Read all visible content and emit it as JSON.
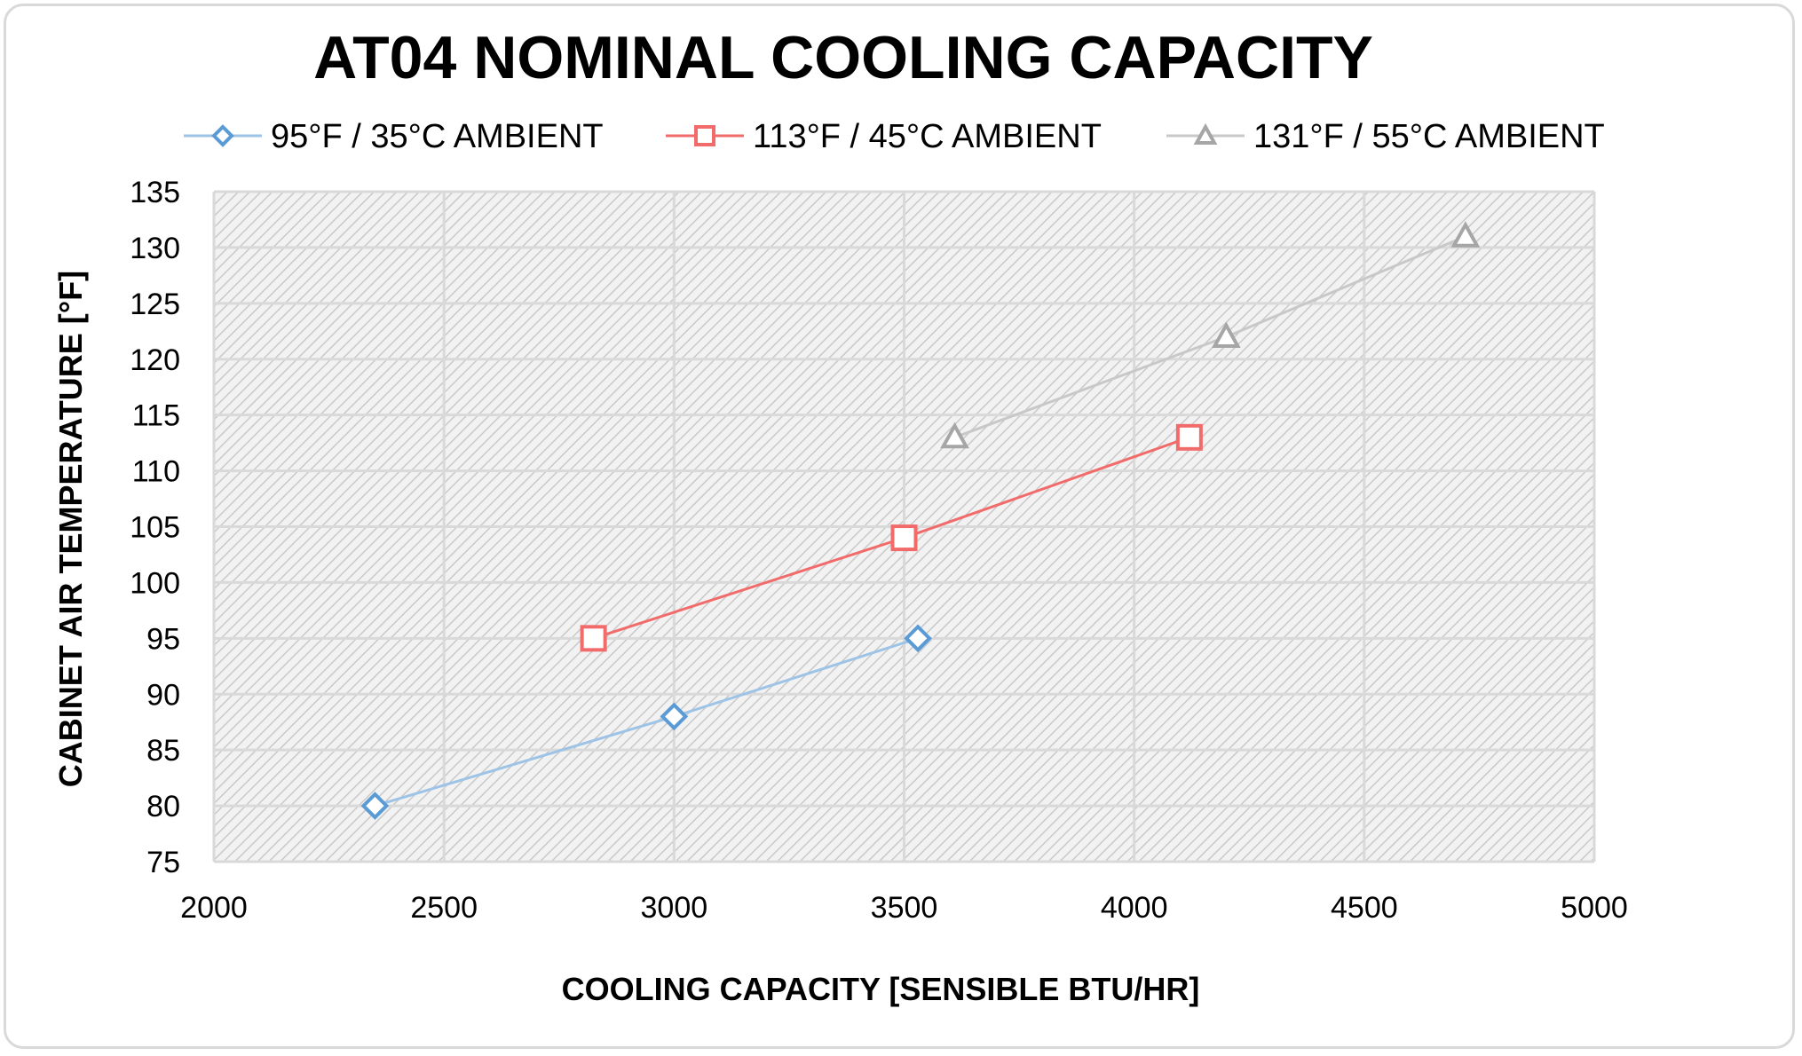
{
  "chart_data": {
    "type": "line",
    "title": "AT04 NOMINAL COOLING CAPACITY",
    "xlabel": "COOLING CAPACITY [SENSIBLE BTU/HR]",
    "ylabel": "CABINET AIR TEMPERATURE  [°F]",
    "xlim": [
      2000,
      5000
    ],
    "ylim": [
      75,
      135
    ],
    "xticks": [
      2000,
      2500,
      3000,
      3500,
      4000,
      4500,
      5000
    ],
    "yticks": [
      75,
      80,
      85,
      90,
      95,
      100,
      105,
      110,
      115,
      120,
      125,
      130,
      135
    ],
    "grid": true,
    "legend_position": "top",
    "series": [
      {
        "name": "95°F / 35°C AMBIENT",
        "marker": "diamond",
        "color": "#5b9bd5",
        "line_color": "#9dc3e6",
        "x": [
          2350,
          3000,
          3530
        ],
        "y": [
          80,
          88,
          95
        ]
      },
      {
        "name": "113°F / 45°C AMBIENT",
        "marker": "square",
        "color": "#f26b6b",
        "line_color": "#f26b6b",
        "x": [
          2825,
          3500,
          4120
        ],
        "y": [
          95,
          104,
          113
        ]
      },
      {
        "name": "131°F / 55°C AMBIENT",
        "marker": "triangle",
        "color": "#a6a6a6",
        "line_color": "#c8c8c8",
        "x": [
          3610,
          4200,
          4720
        ],
        "y": [
          113,
          122,
          131
        ]
      }
    ]
  }
}
